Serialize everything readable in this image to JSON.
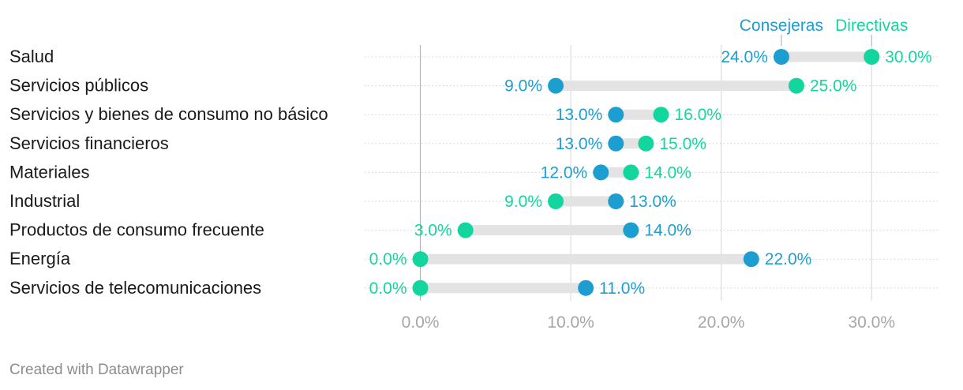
{
  "chart_data": {
    "type": "dot-range",
    "categories": [
      "Salud",
      "Servicios públicos",
      "Servicios y bienes de consumo no básico",
      "Servicios financieros",
      "Materiales",
      "Industrial",
      "Productos de consumo frecuente",
      "Energía",
      "Servicios de telecomunicaciones"
    ],
    "series": [
      {
        "name": "Consejeras",
        "color": "#1c9fd0",
        "values": [
          24,
          9,
          13,
          13,
          12,
          13,
          14,
          22,
          11
        ]
      },
      {
        "name": "Directivas",
        "color": "#13d69e",
        "values": [
          30,
          25,
          16,
          15,
          14,
          9,
          3,
          0,
          0
        ]
      }
    ],
    "value_labels": {
      "Consejeras": [
        "24.0%",
        "9.0%",
        "13.0%",
        "13.0%",
        "12.0%",
        "13.0%",
        "14.0%",
        "22.0%",
        "11.0%"
      ],
      "Directivas": [
        "30.0%",
        "25.0%",
        "16.0%",
        "15.0%",
        "14.0%",
        "9.0%",
        "3.0%",
        "0.0%",
        "0.0%"
      ]
    },
    "x_ticks": [
      0,
      10,
      20,
      30
    ],
    "x_tick_labels": [
      "0.0%",
      "10.0%",
      "20.0%",
      "30.0%"
    ],
    "xlim": [
      -3.7,
      34.5
    ],
    "grid": true,
    "legend": "top, labeling first row"
  },
  "credit": "Created with Datawrapper"
}
